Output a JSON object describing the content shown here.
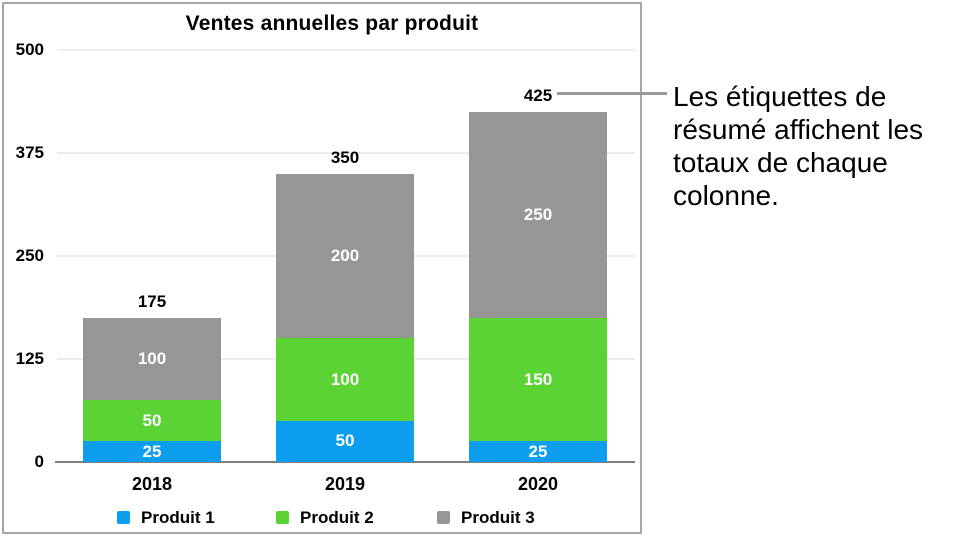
{
  "chart_data": {
    "type": "bar",
    "stacked": true,
    "title": "Ventes annuelles par produit",
    "categories": [
      "2018",
      "2019",
      "2020"
    ],
    "series": [
      {
        "name": "Produit 1",
        "color": "#0d9ef0",
        "values": [
          25,
          50,
          25
        ]
      },
      {
        "name": "Produit 2",
        "color": "#5cd334",
        "values": [
          50,
          100,
          150
        ]
      },
      {
        "name": "Produit 3",
        "color": "#969696",
        "values": [
          100,
          200,
          250
        ]
      }
    ],
    "totals": [
      175,
      350,
      425
    ],
    "y_ticks": [
      "0",
      "125",
      "250",
      "375",
      "500"
    ],
    "ylim": [
      0,
      500
    ],
    "grid": true,
    "legend_position": "bottom",
    "colors": {
      "gridline": "#ececec",
      "axis": "#7d7d7d",
      "segment_label": "#ffffff",
      "frame_border": "#a6a6a6"
    }
  },
  "callout": {
    "text": "Les étiquettes de résumé affichent les totaux de chaque colonne.",
    "lines": [
      "Les étiquettes de",
      "résumé affichent les",
      "totaux de chaque",
      "colonne."
    ]
  }
}
